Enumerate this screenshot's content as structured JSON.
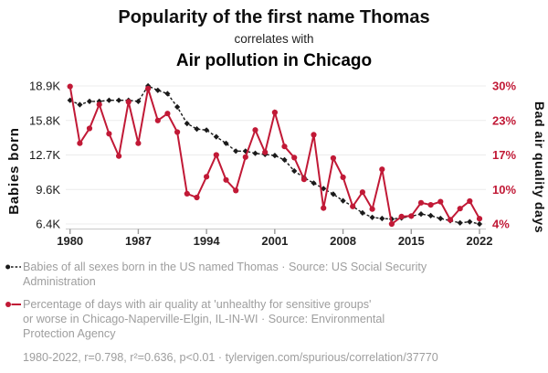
{
  "header": {
    "title": "Popularity of the first name Thomas",
    "connector": "correlates with",
    "subtitle": "Air pollution in Chicago"
  },
  "colors": {
    "accent_red": "#c11936",
    "series_black": "#1a1a1a",
    "text_gray": "#9e9e9e",
    "gridline": "#ececec",
    "axis_line": "#c8c8c8"
  },
  "chart_data": {
    "type": "line",
    "title": "Popularity of the first name Thomas correlates with Air pollution in Chicago",
    "grid": true,
    "legend_position": "bottom",
    "x": [
      1980,
      1981,
      1982,
      1983,
      1984,
      1985,
      1986,
      1987,
      1988,
      1989,
      1990,
      1991,
      1992,
      1993,
      1994,
      1995,
      1996,
      1997,
      1998,
      1999,
      2000,
      2001,
      2002,
      2003,
      2004,
      2005,
      2006,
      2007,
      2008,
      2009,
      2010,
      2011,
      2012,
      2013,
      2014,
      2015,
      2016,
      2017,
      2018,
      2019,
      2020,
      2021,
      2022
    ],
    "series": [
      {
        "name": "Babies of all sexes born in the US named Thomas",
        "unit": "thousands of babies",
        "axis": "left",
        "style": "dashed-diamond",
        "values": [
          17.6,
          17.2,
          17.5,
          17.5,
          17.6,
          17.6,
          17.6,
          17.5,
          18.9,
          18.5,
          18.2,
          17.0,
          15.5,
          15.0,
          14.9,
          14.3,
          13.7,
          13.0,
          13.0,
          12.8,
          12.7,
          12.6,
          12.2,
          11.2,
          10.6,
          10.1,
          9.6,
          9.1,
          8.5,
          8.0,
          7.4,
          7.0,
          6.9,
          6.85,
          6.95,
          7.1,
          7.3,
          7.15,
          6.9,
          6.7,
          6.5,
          6.6,
          6.4
        ]
      },
      {
        "name": "Percentage of days with air quality at 'unhealthy for sensitive groups' or worse in Chicago-Naperville-Elgin, IL-IN-WI",
        "unit": "% of days",
        "axis": "right",
        "style": "solid-circle",
        "values": [
          29.9,
          19.2,
          22.0,
          26.5,
          21.0,
          16.8,
          27.0,
          19.2,
          29.5,
          23.5,
          24.8,
          21.3,
          9.7,
          9.0,
          12.9,
          17.0,
          12.3,
          10.3,
          16.6,
          21.7,
          17.5,
          25.0,
          18.6,
          16.5,
          12.4,
          20.8,
          7.0,
          16.4,
          12.8,
          7.3,
          10.0,
          6.8,
          14.3,
          4.0,
          5.4,
          5.5,
          8.0,
          7.6,
          8.2,
          4.8,
          6.9,
          8.3,
          5.0
        ]
      }
    ],
    "left_axis": {
      "label": "Babies born",
      "ticks": [
        "18.9K",
        "15.8K",
        "12.7K",
        "9.6K",
        "6.4K"
      ],
      "range": [
        6.4,
        18.9
      ]
    },
    "right_axis": {
      "label": "Bad air quality days",
      "ticks": [
        "30%",
        "23%",
        "17%",
        "10%",
        "4%"
      ],
      "range": [
        4,
        30
      ]
    },
    "x_axis": {
      "ticks": [
        "1980",
        "1987",
        "1994",
        "2001",
        "2008",
        "2015",
        "2022"
      ],
      "range": [
        1980,
        2022
      ]
    }
  },
  "legend": {
    "items": [
      {
        "marker": "black-dashed-series",
        "lines": [
          "Babies of all sexes born in the US named Thomas · Source: US Social Security",
          "Administration"
        ]
      },
      {
        "marker": "red-solid-series",
        "lines": [
          "Percentage of days with air quality at 'unhealthy for sensitive groups'",
          "or worse in Chicago-Naperville-Elgin, IL-IN-WI · Source: Environmental",
          "Protection Agency"
        ]
      }
    ]
  },
  "footer": {
    "text": "1980-2022, r=0.798, r²=0.636, p<0.01 · tylervigen.com/spurious/correlation/37770"
  }
}
